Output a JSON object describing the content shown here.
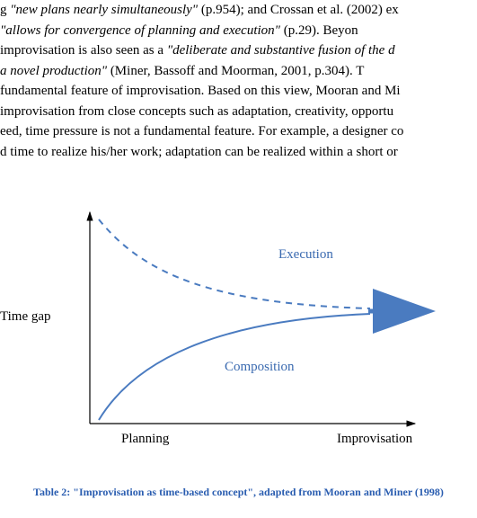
{
  "paragraph": {
    "l1a": "g ",
    "l1q": "\"new plans nearly simultaneously\"",
    "l1b": " (p.954); and Crossan et al. (2002) ex",
    "l2a": " ",
    "l2q": "\"allows for convergence of planning and execution\"",
    "l2b": " (p.29). Beyon",
    "l3a": "improvisation is also seen as a ",
    "l3q": "\"deliberate and substantive fusion of the d",
    "l4q": " a novel production\"",
    "l4b": " (Miner, Bassoff and Moorman, 2001, p.304). T",
    "l5": "fundamental feature of improvisation. Based on this view, Mooran and Mi",
    "l6": "improvisation from close concepts such as adaptation, creativity, opportu",
    "l7": "eed, time pressure is not a fundamental feature. For example, a designer co",
    "l8": "d time to realize his/her work; adaptation can be realized within a short or"
  },
  "figure": {
    "y_label": "Time gap",
    "x_left": "Planning",
    "x_right": "Improvisation",
    "exec_label": "Execution",
    "comp_label": "Composition",
    "curve_color": "#4a7bc0",
    "axis_color": "#000000",
    "axis_width": 1.2,
    "curve_width": 2.0,
    "dash": "7,6"
  },
  "caption": "Table 2: \"Improvisation as time-based concept\", adapted from Mooran and Miner (1998)"
}
